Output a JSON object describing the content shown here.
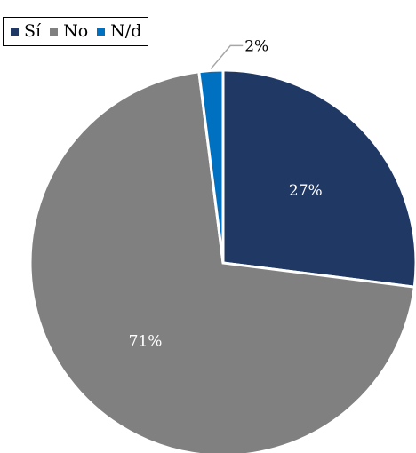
{
  "chart_data": {
    "type": "pie",
    "title": "",
    "categories": [
      "Sí",
      "No",
      "N/d"
    ],
    "values": [
      27,
      71,
      2
    ],
    "labels": [
      "27%",
      "71%",
      "2%"
    ],
    "colors": [
      "#1f3864",
      "#808080",
      "#0070c0"
    ],
    "legend_position": "top-left",
    "label_colors": [
      "#ffffff",
      "#ffffff",
      "#000000"
    ]
  }
}
